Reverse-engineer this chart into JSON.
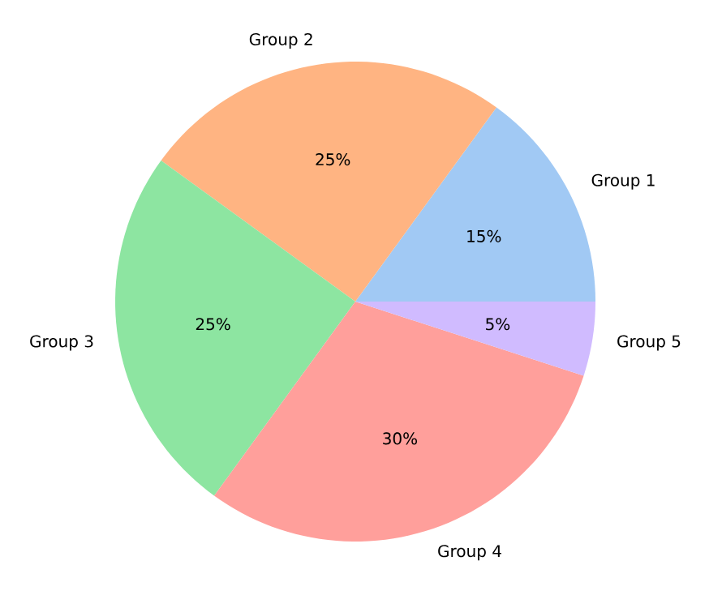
{
  "chart_data": {
    "type": "pie",
    "categories": [
      "Group 1",
      "Group 2",
      "Group 3",
      "Group 4",
      "Group 5"
    ],
    "values": [
      15,
      25,
      25,
      30,
      5
    ],
    "colors": [
      "#a1c9f4",
      "#ffb482",
      "#8de5a1",
      "#ff9f9b",
      "#d0bbff"
    ],
    "value_labels": [
      "15%",
      "25%",
      "25%",
      "30%",
      "5%"
    ]
  }
}
